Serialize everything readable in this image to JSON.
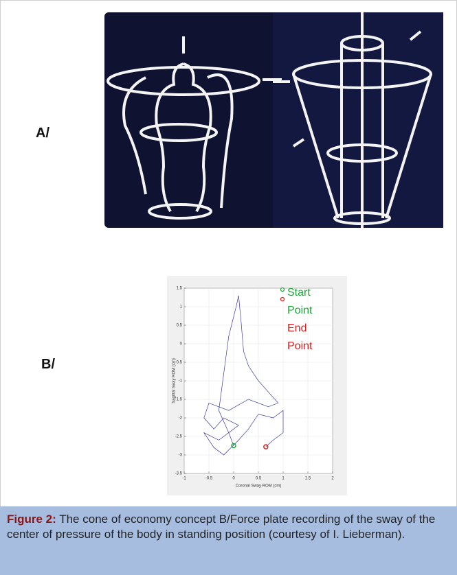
{
  "panel_labels": [
    "A/",
    "B/"
  ],
  "chart_data": {
    "type": "line",
    "xlabel": "Coronal Sway ROM (cm)",
    "ylabel": "Sagittal Sway ROM (cm)",
    "xlim": [
      -1,
      2
    ],
    "ylim": [
      -3.5,
      1.5
    ],
    "xticks": [
      -1,
      -0.5,
      0,
      0.5,
      1,
      1.5,
      2
    ],
    "yticks": [
      -3.5,
      -3,
      -2.5,
      -2,
      -1.5,
      -1,
      -0.5,
      0,
      0.5,
      1,
      1.5
    ],
    "series": [
      {
        "color": "#3b3b9a",
        "x": [
          0,
          -0.1,
          -0.3,
          -0.2,
          -0.1,
          0.05,
          0.1,
          0.15,
          0.2,
          0.3,
          0.5,
          0.7,
          0.9,
          0.7,
          0.3,
          -0.1,
          -0.5,
          -0.6,
          -0.4,
          -0.2,
          0.1,
          -0.3,
          -0.6,
          -0.4,
          -0.2,
          0.1,
          0.3,
          0.5,
          0.8,
          1.0,
          1.0,
          0.8,
          0.65
        ],
        "values": [
          -2.75,
          -2.4,
          -1.8,
          -0.8,
          0.2,
          1.0,
          1.3,
          0.6,
          -0.2,
          -0.6,
          -1.0,
          -1.3,
          -1.6,
          -1.7,
          -1.5,
          -1.8,
          -1.6,
          -2.0,
          -2.3,
          -2.0,
          -2.2,
          -2.6,
          -2.4,
          -2.8,
          -3.0,
          -2.6,
          -2.3,
          -1.9,
          -2.0,
          -1.8,
          -2.4,
          -2.6,
          -2.78
        ]
      }
    ],
    "points": [
      {
        "label": "Start Point",
        "color": "#1fa83a",
        "x": 0,
        "y": -2.75
      },
      {
        "label": "End Point",
        "color": "#d62020",
        "x": 0.65,
        "y": -2.78
      }
    ]
  },
  "caption": {
    "label": "Figure 2:",
    "text": "The cone of economy concept B/Force plate recording of the sway of the center of pressure of the body in standing position (courtesy of I. Lieberman)."
  }
}
